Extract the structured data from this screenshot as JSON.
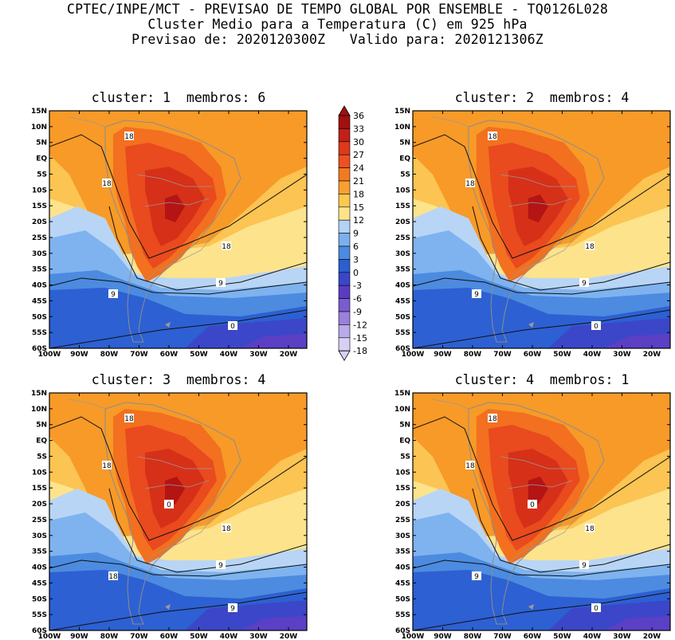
{
  "header": {
    "line1": "CPTEC/INPE/MCT - PREVISAO DE TEMPO GLOBAL POR ENSEMBLE - TQ0126L028",
    "line2": "Cluster Medio para a Temperatura (C) em 925 hPa",
    "line3": "Previsao de: 2020120300Z   Valido para: 2020121306Z"
  },
  "panels": [
    {
      "title": "cluster: 1  membros: 6",
      "contour_labels": [
        "18",
        "18",
        "18",
        "9",
        "9",
        "0"
      ]
    },
    {
      "title": "cluster: 2  membros: 4",
      "contour_labels": [
        "18",
        "18",
        "18",
        "9",
        "9",
        "0"
      ]
    },
    {
      "title": "cluster: 3  membros: 4",
      "contour_labels": [
        "18",
        "18",
        "18",
        "18",
        "9",
        "9",
        "0"
      ]
    },
    {
      "title": "cluster: 4  membros: 1",
      "contour_labels": [
        "18",
        "18",
        "18",
        "9",
        "9",
        "0",
        "0"
      ]
    }
  ],
  "axes": {
    "lat_ticks": [
      "15N",
      "10N",
      "5N",
      "EQ",
      "5S",
      "10S",
      "15S",
      "20S",
      "25S",
      "30S",
      "35S",
      "40S",
      "45S",
      "50S",
      "55S",
      "60S"
    ],
    "lon_ticks": [
      "100W",
      "90W",
      "80W",
      "70W",
      "60W",
      "50W",
      "40W",
      "30W",
      "20W"
    ]
  },
  "colorbar": {
    "labels": [
      "36",
      "33",
      "30",
      "27",
      "24",
      "21",
      "18",
      "15",
      "12",
      "9",
      "6",
      "3",
      "0",
      "-3",
      "-6",
      "-9",
      "-12",
      "-15",
      "-18"
    ],
    "colors": [
      "#a01010",
      "#c02018",
      "#dd3a1c",
      "#ee5020",
      "#f47a22",
      "#f7a030",
      "#fcc850",
      "#fde48a",
      "#b4d2f4",
      "#7ab0ee",
      "#4a8ae0",
      "#2c5ed0",
      "#3a46c8",
      "#5a3cc4",
      "#7a5cd0",
      "#9a80dc",
      "#baaae8",
      "#d8d0f4"
    ],
    "color_labels": [
      "dark-red",
      "red",
      "orange-red",
      "orange",
      "orange",
      "light-orange",
      "gold",
      "light-yellow",
      "light-blue",
      "sky-blue",
      "blue",
      "dark-blue",
      "indigo",
      "purple",
      "violet",
      "lavender",
      "light-lavender",
      "pale-lavender"
    ]
  }
}
